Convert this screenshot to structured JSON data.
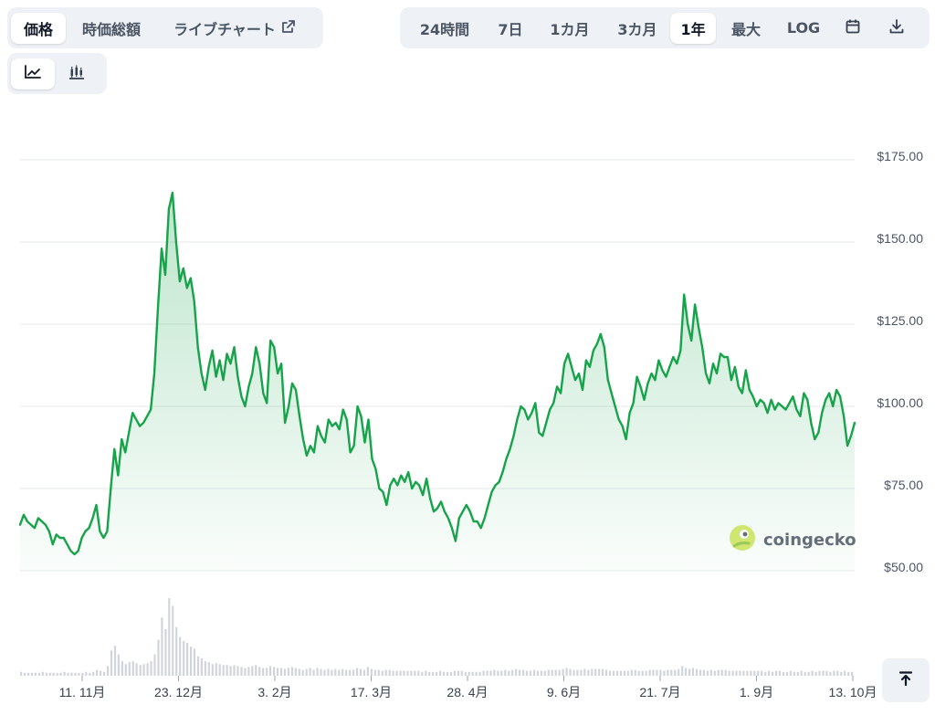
{
  "view_tabs": [
    {
      "label": "価格",
      "active": true
    },
    {
      "label": "時価総額",
      "active": false
    },
    {
      "label": "ライブチャート",
      "active": false
    }
  ],
  "range_tabs": [
    {
      "label": "24時間",
      "active": false
    },
    {
      "label": "7日",
      "active": false
    },
    {
      "label": "1カ月",
      "active": false
    },
    {
      "label": "3カ月",
      "active": false
    },
    {
      "label": "1年",
      "active": true
    },
    {
      "label": "最大",
      "active": false
    },
    {
      "label": "LOG",
      "active": false
    }
  ],
  "chart_type_tabs": [
    {
      "icon": "line-chart-icon",
      "active": true
    },
    {
      "icon": "candlestick-chart-icon",
      "active": false
    }
  ],
  "icons": {
    "calendar": "calendar-icon",
    "download": "download-icon",
    "external": "external-link-icon",
    "scroll_top": "arrow-up-to-top-icon"
  },
  "watermark": {
    "text": "coingecko"
  },
  "colors": {
    "line": "#16a34a",
    "area_top": "#bfe8c9",
    "grid": "#e5e7eb",
    "volume": "#d1d5db"
  },
  "chart_data": {
    "type": "area",
    "x_ticks": [
      "11. 11月",
      "23. 12月",
      "3. 2月",
      "17. 3月",
      "28. 4月",
      "9. 6月",
      "21. 7月",
      "1. 9月",
      "13. 10月"
    ],
    "y_ticks": [
      "$50.00",
      "$75.00",
      "$100.00",
      "$125.00",
      "$150.00",
      "$175.00"
    ],
    "ylim": [
      50,
      175
    ],
    "grid": true,
    "series": [
      {
        "values": [
          64,
          67,
          65,
          64,
          63,
          66,
          65,
          64,
          62,
          58,
          61,
          60,
          60,
          58,
          56,
          55,
          56,
          60,
          62,
          63,
          66,
          70,
          62,
          60,
          62,
          75,
          87,
          79,
          90,
          86,
          92,
          98,
          96,
          94,
          95,
          97,
          99,
          110,
          130,
          148,
          140,
          160,
          165,
          150,
          138,
          142,
          136,
          139,
          132,
          118,
          110,
          105,
          112,
          117,
          109,
          114,
          108,
          116,
          113,
          118,
          109,
          103,
          100,
          106,
          110,
          118,
          113,
          104,
          101,
          120,
          118,
          110,
          113,
          95,
          100,
          107,
          105,
          97,
          90,
          85,
          88,
          86,
          94,
          91,
          89,
          96,
          94,
          95,
          93,
          99,
          96,
          86,
          88,
          100,
          97,
          89,
          96,
          84,
          81,
          75,
          74,
          70,
          76,
          78,
          76,
          79,
          77,
          80,
          75,
          77,
          76,
          73,
          78,
          72,
          68,
          69,
          71,
          68,
          66,
          63,
          59,
          66,
          68,
          70,
          68,
          65,
          65,
          63,
          66,
          70,
          74,
          76,
          77,
          80,
          84,
          87,
          91,
          96,
          100,
          99,
          96,
          98,
          101,
          92,
          91,
          95,
          99,
          101,
          106,
          104,
          113,
          116,
          112,
          108,
          110,
          105,
          114,
          112,
          117,
          119,
          122,
          118,
          108,
          104,
          100,
          96,
          94,
          90,
          98,
          101,
          109,
          106,
          102,
          107,
          110,
          108,
          114,
          111,
          109,
          112,
          115,
          113,
          117,
          134,
          125,
          120,
          131,
          124,
          118,
          110,
          107,
          113,
          110,
          116,
          115,
          115,
          108,
          112,
          106,
          104,
          111,
          105,
          103,
          100,
          102,
          101,
          98,
          102,
          99,
          101,
          100,
          99,
          101,
          103,
          99,
          97,
          104,
          102,
          95,
          90,
          92,
          98,
          102,
          104,
          100,
          105,
          103,
          97,
          88,
          91,
          95
        ]
      }
    ],
    "volume": [
      4,
      3,
      3,
      3,
      3,
      3,
      4,
      3,
      3,
      3,
      3,
      3,
      4,
      3,
      3,
      3,
      3,
      3,
      4,
      3,
      4,
      6,
      5,
      4,
      10,
      26,
      31,
      22,
      15,
      12,
      14,
      15,
      13,
      11,
      12,
      13,
      15,
      22,
      37,
      60,
      48,
      80,
      72,
      50,
      40,
      36,
      34,
      30,
      28,
      20,
      18,
      15,
      14,
      12,
      13,
      12,
      11,
      11,
      10,
      11,
      10,
      9,
      8,
      9,
      10,
      11,
      9,
      8,
      8,
      10,
      9,
      8,
      8,
      7,
      8,
      9,
      8,
      7,
      6,
      7,
      8,
      6,
      8,
      7,
      6,
      7,
      6,
      7,
      6,
      7,
      6,
      6,
      6,
      8,
      7,
      6,
      9,
      7,
      6,
      6,
      5,
      6,
      6,
      5,
      5,
      5,
      5,
      5,
      5,
      5,
      5,
      4,
      5,
      4,
      4,
      4,
      5,
      4,
      4,
      4,
      5,
      5,
      5,
      4,
      4,
      4,
      4,
      4,
      5,
      5,
      5,
      6,
      5,
      5,
      6,
      5,
      6,
      7,
      6,
      6,
      5,
      5,
      6,
      5,
      5,
      5,
      6,
      6,
      6,
      6,
      7,
      8,
      7,
      6,
      6,
      6,
      7,
      6,
      7,
      7,
      7,
      7,
      6,
      5,
      5,
      5,
      5,
      5,
      5,
      6,
      6,
      5,
      5,
      5,
      6,
      6,
      6,
      6,
      5,
      6,
      6,
      6,
      7,
      10,
      8,
      7,
      8,
      7,
      6,
      6,
      5,
      6,
      5,
      6,
      6,
      6,
      5,
      5,
      5,
      5,
      5,
      5,
      5,
      5,
      5,
      5,
      4,
      5,
      4,
      5,
      5,
      4,
      4,
      5,
      4,
      4,
      5,
      4,
      4,
      5,
      4,
      5,
      5,
      5,
      4,
      5,
      5,
      4,
      5,
      4,
      4
    ]
  }
}
